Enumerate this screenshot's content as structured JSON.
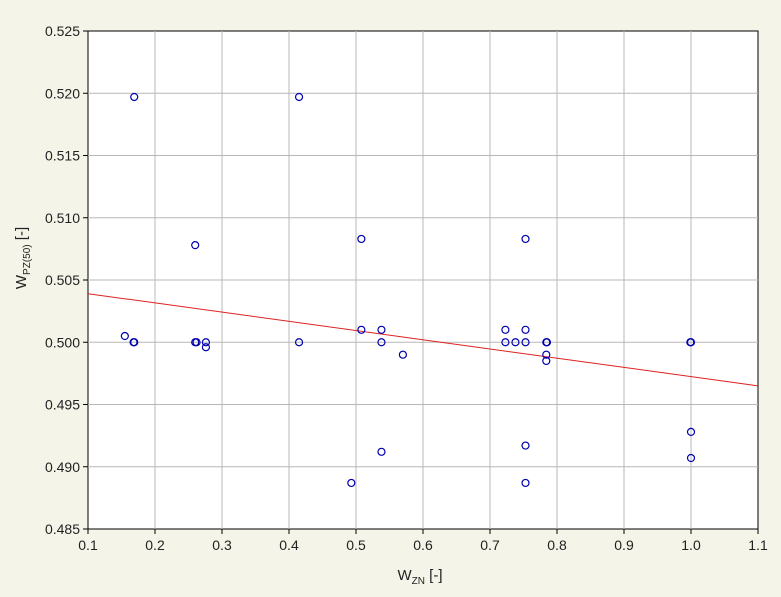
{
  "chart_data": {
    "type": "scatter",
    "xlim": [
      0.1,
      1.1
    ],
    "ylim": [
      0.485,
      0.525
    ],
    "x_ticks": [
      "0.1",
      "0.2",
      "0.3",
      "0.4",
      "0.5",
      "0.6",
      "0.7",
      "0.8",
      "0.9",
      "1.0",
      "1.1"
    ],
    "y_ticks": [
      "0.485",
      "0.490",
      "0.495",
      "0.500",
      "0.505",
      "0.510",
      "0.515",
      "0.520",
      "0.525"
    ],
    "xlabel": {
      "main": "W",
      "sub": "ZN",
      "suffix": " [-]"
    },
    "ylabel": {
      "main": "W",
      "sub": "PZ(50)",
      "suffix": " [-]"
    },
    "grid": true,
    "marker": "open-circle",
    "colors": {
      "points": "#0000b0",
      "fit_line": "#e02020",
      "plot_bg": "#ffffff",
      "grid": "#b8b8b8"
    },
    "points": [
      {
        "x": 0.155,
        "y": 0.5005
      },
      {
        "x": 0.168,
        "y": 0.5
      },
      {
        "x": 0.169,
        "y": 0.5
      },
      {
        "x": 0.169,
        "y": 0.5197
      },
      {
        "x": 0.26,
        "y": 0.5078
      },
      {
        "x": 0.26,
        "y": 0.5
      },
      {
        "x": 0.262,
        "y": 0.5
      },
      {
        "x": 0.276,
        "y": 0.5
      },
      {
        "x": 0.276,
        "y": 0.4996
      },
      {
        "x": 0.415,
        "y": 0.5197
      },
      {
        "x": 0.415,
        "y": 0.5
      },
      {
        "x": 0.493,
        "y": 0.4887
      },
      {
        "x": 0.508,
        "y": 0.5083
      },
      {
        "x": 0.508,
        "y": 0.501
      },
      {
        "x": 0.538,
        "y": 0.501
      },
      {
        "x": 0.538,
        "y": 0.5
      },
      {
        "x": 0.538,
        "y": 0.4912
      },
      {
        "x": 0.57,
        "y": 0.499
      },
      {
        "x": 0.723,
        "y": 0.501
      },
      {
        "x": 0.723,
        "y": 0.5
      },
      {
        "x": 0.738,
        "y": 0.5
      },
      {
        "x": 0.753,
        "y": 0.5083
      },
      {
        "x": 0.753,
        "y": 0.501
      },
      {
        "x": 0.753,
        "y": 0.5
      },
      {
        "x": 0.753,
        "y": 0.4917
      },
      {
        "x": 0.753,
        "y": 0.4887
      },
      {
        "x": 0.784,
        "y": 0.5
      },
      {
        "x": 0.785,
        "y": 0.5
      },
      {
        "x": 0.784,
        "y": 0.499
      },
      {
        "x": 0.784,
        "y": 0.4985
      },
      {
        "x": 1.0,
        "y": 0.5
      },
      {
        "x": 0.999,
        "y": 0.5
      },
      {
        "x": 1.0,
        "y": 0.4928
      },
      {
        "x": 1.0,
        "y": 0.4907
      }
    ],
    "fit_line": {
      "x": [
        0.1,
        1.1
      ],
      "y": [
        0.5039,
        0.4965
      ]
    }
  }
}
